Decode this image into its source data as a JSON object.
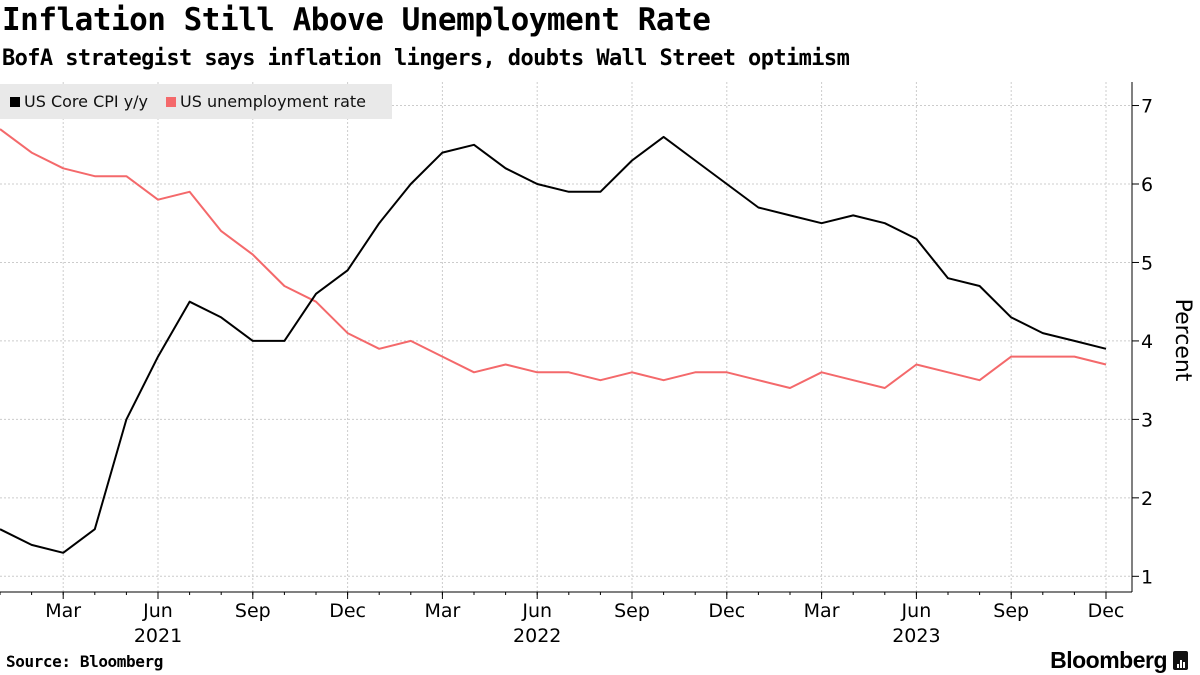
{
  "header": {
    "title": "Inflation Still Above Unemployment Rate",
    "subtitle": "BofA strategist says inflation lingers, doubts Wall Street optimism"
  },
  "footer": {
    "source": "Source: Bloomberg",
    "brand": "Bloomberg"
  },
  "colors": {
    "core_cpi": "#000000",
    "unemployment": "#f4696b",
    "legend_bg": "#e9e9e9",
    "grid": "#cccccc"
  },
  "chart_data": {
    "type": "line",
    "title": "Inflation Still Above Unemployment Rate",
    "ylabel": "Percent",
    "ylim": [
      0.8,
      7.3
    ],
    "y_ticks": [
      1,
      2,
      3,
      4,
      5,
      6,
      7
    ],
    "x": [
      "2021-01",
      "2021-02",
      "2021-03",
      "2021-04",
      "2021-05",
      "2021-06",
      "2021-07",
      "2021-08",
      "2021-09",
      "2021-10",
      "2021-11",
      "2021-12",
      "2022-01",
      "2022-02",
      "2022-03",
      "2022-04",
      "2022-05",
      "2022-06",
      "2022-07",
      "2022-08",
      "2022-09",
      "2022-10",
      "2022-11",
      "2022-12",
      "2023-01",
      "2023-02",
      "2023-03",
      "2023-04",
      "2023-05",
      "2023-06",
      "2023-07",
      "2023-08",
      "2023-09",
      "2023-10",
      "2023-11",
      "2023-12"
    ],
    "x_tick_labels": [
      {
        "index": 2,
        "label": "Mar"
      },
      {
        "index": 5,
        "label": "Jun",
        "year": "2021"
      },
      {
        "index": 8,
        "label": "Sep"
      },
      {
        "index": 11,
        "label": "Dec"
      },
      {
        "index": 14,
        "label": "Mar"
      },
      {
        "index": 17,
        "label": "Jun",
        "year": "2022"
      },
      {
        "index": 20,
        "label": "Sep"
      },
      {
        "index": 23,
        "label": "Dec"
      },
      {
        "index": 26,
        "label": "Mar"
      },
      {
        "index": 29,
        "label": "Jun",
        "year": "2023"
      },
      {
        "index": 32,
        "label": "Sep"
      },
      {
        "index": 35,
        "label": "Dec"
      }
    ],
    "series": [
      {
        "name": "US Core CPI y/y",
        "color": "#000000",
        "values": [
          1.6,
          1.4,
          1.3,
          1.6,
          3.0,
          3.8,
          4.5,
          4.3,
          4.0,
          4.0,
          4.6,
          4.9,
          5.5,
          6.0,
          6.4,
          6.5,
          6.2,
          6.0,
          5.9,
          5.9,
          6.3,
          6.6,
          6.3,
          6.0,
          5.7,
          5.6,
          5.5,
          5.6,
          5.5,
          5.3,
          4.8,
          4.7,
          4.3,
          4.1,
          4.0,
          3.9
        ]
      },
      {
        "name": "US unemployment rate",
        "color": "#f4696b",
        "values": [
          6.7,
          6.4,
          6.2,
          6.1,
          6.1,
          5.8,
          5.9,
          5.4,
          5.1,
          4.7,
          4.5,
          4.1,
          3.9,
          4.0,
          3.8,
          3.6,
          3.7,
          3.6,
          3.6,
          3.5,
          3.6,
          3.5,
          3.6,
          3.6,
          3.5,
          3.4,
          3.6,
          3.5,
          3.4,
          3.7,
          3.6,
          3.5,
          3.8,
          3.8,
          3.8,
          3.7
        ]
      }
    ]
  }
}
